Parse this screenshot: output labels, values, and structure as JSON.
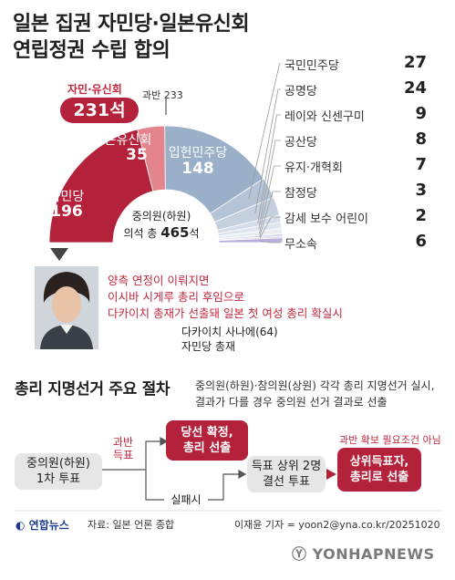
{
  "title": {
    "line1": "일본 집권 자민당·일본유신회",
    "line2": "연립정권 수립 합의"
  },
  "colors": {
    "ldp": "#b3213a",
    "ishin": "#e4858d",
    "cdp": "#9aafc8",
    "accent_red": "#c0283e",
    "gray_box": "#e6e6e6"
  },
  "chart_data": {
    "type": "pie",
    "layout": "semicircle",
    "title": "중의원(하원) 의석 총 465석",
    "total_seats": 465,
    "majority_line": 233,
    "series": [
      {
        "name": "자민당",
        "value": 196,
        "color": "#b3213a"
      },
      {
        "name": "일본유신회",
        "value": 35,
        "color": "#e4858d"
      },
      {
        "name": "입헌민주당",
        "value": 148,
        "color": "#9aafc8"
      },
      {
        "name": "국민민주당",
        "value": 27,
        "color": "#b5c3d6"
      },
      {
        "name": "공명당",
        "value": 24,
        "color": "#c5d0df"
      },
      {
        "name": "레이와 신센구미",
        "value": 9,
        "color": "#d3dce8"
      },
      {
        "name": "공산당",
        "value": 8,
        "color": "#dfe5ee"
      },
      {
        "name": "유지·개혁회",
        "value": 7,
        "color": "#e9edf3"
      },
      {
        "name": "참정당",
        "value": 3,
        "color": "#d6d2ec"
      },
      {
        "name": "감세 보수 어린이",
        "value": 2,
        "color": "#c8c2e6"
      },
      {
        "name": "무소속",
        "value": 6,
        "color": "#b7aedc"
      }
    ],
    "coalition": {
      "label": "자민·유신회",
      "seats": "231석"
    },
    "majority_label": "과반 233",
    "center_line1": "중의원(하원)",
    "center_line2_pre": "의석 총 ",
    "center_line2_num": "465",
    "center_line2_post": "석"
  },
  "parties_list": [
    {
      "name": "국민민주당",
      "seats": "27"
    },
    {
      "name": "공명당",
      "seats": "24"
    },
    {
      "name": "레이와 신센구미",
      "seats": "9"
    },
    {
      "name": "공산당",
      "seats": "8"
    },
    {
      "name": "유지·개혁회",
      "seats": "7"
    },
    {
      "name": "참정당",
      "seats": "3"
    },
    {
      "name": "감세 보수 어린이",
      "seats": "2"
    },
    {
      "name": "무소속",
      "seats": "6"
    }
  ],
  "segments": {
    "ldp": {
      "name": "자민당",
      "value": "196"
    },
    "ishin": {
      "name": "일본유신회",
      "value": "35"
    },
    "cdp": {
      "name": "입헌민주당",
      "value": "148"
    }
  },
  "person": {
    "lines": [
      "양측 연정이 이뤄지면",
      "이시바 시게루 총리 후임으로",
      "다카이치 총재가 선출돼 일본 첫 여성 총리 확실시"
    ],
    "name": "다카이치 사나에(64)",
    "role": "자민당 총재"
  },
  "procedure": {
    "title": "총리 지명선거 주요 절차",
    "desc1": "중의원(하원)·참의원(상원) 각각 총리 지명선거 실시,",
    "desc2": "결과가 다를 경우 중의원 선거 결과로 선출",
    "box1": "중의원(하원)\n1차 투표",
    "majority_vote": "과반\n득표",
    "box_win": "당선 확정,\n총리 선출",
    "fail": "실패시",
    "box_runoff": "득표 상위 2명\n결선 투표",
    "condition": "과반 확보 필요조건 아님",
    "box_final": "상위득표자,\n총리로 선출"
  },
  "footer": {
    "logo": "연합뉴스",
    "source": "자료: 일본 언론 종합",
    "credit": "이재윤 기자 = yoon2@yna.co.kr/20251020",
    "watermark": "YONHAPNEWS"
  }
}
